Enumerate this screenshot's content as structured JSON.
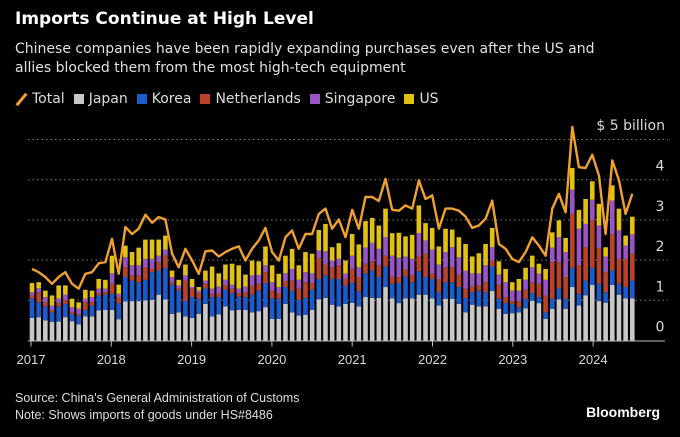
{
  "title": "Imports Continue at High Level",
  "subtitle_lines": [
    "Chinese companies have been rapidly expanding purchases even after the US and",
    "allies blocked them from the most high-tech equipment"
  ],
  "footer": {
    "source": "Source: China's General Administration of Customs",
    "note": "Note: Shows imports of goods under HS#8486",
    "brand": "Bloomberg"
  },
  "chart_data": {
    "type": "bar",
    "stacked": true,
    "title": "Imports Continue at High Level",
    "ylabel": "",
    "y_unit_label": "$ 5 billion",
    "ylim": [
      0,
      5.4
    ],
    "yticks": [
      "0",
      "1",
      "2",
      "3",
      "4"
    ],
    "xticks": [
      "2017",
      "2018",
      "2019",
      "2020",
      "2021",
      "2022",
      "2023",
      "2024"
    ],
    "grid": true,
    "legend": "top-left",
    "categories": [
      "2017-01",
      "2017-02",
      "2017-03",
      "2017-04",
      "2017-05",
      "2017-06",
      "2017-07",
      "2017-08",
      "2017-09",
      "2017-10",
      "2017-11",
      "2017-12",
      "2018-01",
      "2018-02",
      "2018-03",
      "2018-04",
      "2018-05",
      "2018-06",
      "2018-07",
      "2018-08",
      "2018-09",
      "2018-10",
      "2018-11",
      "2018-12",
      "2019-01",
      "2019-02",
      "2019-03",
      "2019-04",
      "2019-05",
      "2019-06",
      "2019-07",
      "2019-08",
      "2019-09",
      "2019-10",
      "2019-11",
      "2019-12",
      "2020-01",
      "2020-02",
      "2020-03",
      "2020-04",
      "2020-05",
      "2020-06",
      "2020-07",
      "2020-08",
      "2020-09",
      "2020-10",
      "2020-11",
      "2020-12",
      "2021-01",
      "2021-02",
      "2021-03",
      "2021-04",
      "2021-05",
      "2021-06",
      "2021-07",
      "2021-08",
      "2021-09",
      "2021-10",
      "2021-11",
      "2021-12",
      "2022-01",
      "2022-02",
      "2022-03",
      "2022-04",
      "2022-05",
      "2022-06",
      "2022-07",
      "2022-08",
      "2022-09",
      "2022-10",
      "2022-11",
      "2022-12",
      "2023-01",
      "2023-02",
      "2023-03",
      "2023-04",
      "2023-05",
      "2023-06",
      "2023-07",
      "2023-08",
      "2023-09",
      "2023-10",
      "2023-11",
      "2023-12",
      "2024-01",
      "2024-02",
      "2024-03",
      "2024-04",
      "2024-05",
      "2024-06",
      "2024-07"
    ],
    "series": [
      {
        "name": "Japan",
        "color": "#c8c8c8",
        "values": [
          0.56,
          0.58,
          0.5,
          0.46,
          0.47,
          0.58,
          0.48,
          0.4,
          0.6,
          0.6,
          0.75,
          0.76,
          0.76,
          0.53,
          0.97,
          0.98,
          0.98,
          1.0,
          1.01,
          1.14,
          1.02,
          0.66,
          0.7,
          0.6,
          0.56,
          0.66,
          0.91,
          0.6,
          0.65,
          0.85,
          0.75,
          0.76,
          0.76,
          0.7,
          0.73,
          0.83,
          0.54,
          0.54,
          0.91,
          0.7,
          0.62,
          0.64,
          0.76,
          1.02,
          1.06,
          0.89,
          0.85,
          0.91,
          0.94,
          0.85,
          1.08,
          1.06,
          1.06,
          1.33,
          1.05,
          0.93,
          1.05,
          1.05,
          1.14,
          1.14,
          1.05,
          0.87,
          1.04,
          1.04,
          0.91,
          0.7,
          0.89,
          0.85,
          0.85,
          1.23,
          0.79,
          0.66,
          0.68,
          0.7,
          0.8,
          0.99,
          0.93,
          0.54,
          0.79,
          1.02,
          0.79,
          1.33,
          0.87,
          1.12,
          1.38,
          0.98,
          0.94,
          1.38,
          1.14,
          1.05,
          1.05
        ]
      },
      {
        "name": "Korea",
        "color": "#1a5ccc",
        "values": [
          0.48,
          0.37,
          0.35,
          0.24,
          0.38,
          0.33,
          0.18,
          0.22,
          0.16,
          0.27,
          0.37,
          0.38,
          0.4,
          0.4,
          0.61,
          0.51,
          0.47,
          0.51,
          0.69,
          0.6,
          0.78,
          0.73,
          0.54,
          0.38,
          0.52,
          0.38,
          0.38,
          0.48,
          0.43,
          0.41,
          0.43,
          0.33,
          0.32,
          0.44,
          0.51,
          0.6,
          0.5,
          0.5,
          0.42,
          0.53,
          0.39,
          0.42,
          0.5,
          0.51,
          0.56,
          0.64,
          0.68,
          0.46,
          0.49,
          0.38,
          0.59,
          0.68,
          0.52,
          0.51,
          0.36,
          0.5,
          0.54,
          0.4,
          0.58,
          0.44,
          0.48,
          0.33,
          0.41,
          0.41,
          0.42,
          0.36,
          0.31,
          0.39,
          0.35,
          0.61,
          0.25,
          0.27,
          0.23,
          0.13,
          0.24,
          0.19,
          0.15,
          0.16,
          0.25,
          0.27,
          0.25,
          0.48,
          0.29,
          0.37,
          0.43,
          0.43,
          0.26,
          0.36,
          0.27,
          0.28,
          0.44
        ]
      },
      {
        "name": "Netherlands",
        "color": "#b8432a",
        "values": [
          0.08,
          0.25,
          0.1,
          0.05,
          0.08,
          0.09,
          0.04,
          0.04,
          0.19,
          0.08,
          0.06,
          0.06,
          0.25,
          0.15,
          0.24,
          0.13,
          0.17,
          0.31,
          0.08,
          0.21,
          0.31,
          0.06,
          0.05,
          0.51,
          0.21,
          0.14,
          0.12,
          0.08,
          0.08,
          0.11,
          0.11,
          0.09,
          0.12,
          0.23,
          0.17,
          0.27,
          0.2,
          0.14,
          0.15,
          0.26,
          0.28,
          0.39,
          0.17,
          0.52,
          0.27,
          0.29,
          0.34,
          0.16,
          0.35,
          0.35,
          0.24,
          0.23,
          0.29,
          0.27,
          0.18,
          0.15,
          0.17,
          0.17,
          0.37,
          0.58,
          0.13,
          0.33,
          0.37,
          0.37,
          0.31,
          0.23,
          0.14,
          0.13,
          0.25,
          0.15,
          0.35,
          0.15,
          0.07,
          0.15,
          0.22,
          0.27,
          0.33,
          0.42,
          0.91,
          0.66,
          0.54,
          1.34,
          0.71,
          0.83,
          1.18,
          0.89,
          0.5,
          0.9,
          0.62,
          0.7,
          0.67
        ]
      },
      {
        "name": "Singapore",
        "color": "#9a55c4",
        "values": [
          0.08,
          0.1,
          0.13,
          0.12,
          0.11,
          0.14,
          0.13,
          0.13,
          0.09,
          0.13,
          0.11,
          0.09,
          0.26,
          0.08,
          0.25,
          0.25,
          0.25,
          0.21,
          0.25,
          0.16,
          0.15,
          0.13,
          0.08,
          0.13,
          0.04,
          0.06,
          0.08,
          0.13,
          0.18,
          0.14,
          0.1,
          0.11,
          0.14,
          0.25,
          0.22,
          0.17,
          0.21,
          0.15,
          0.19,
          0.29,
          0.22,
          0.25,
          0.24,
          0.19,
          0.33,
          0.17,
          0.16,
          0.13,
          0.33,
          0.24,
          0.4,
          0.46,
          0.41,
          0.46,
          0.52,
          0.48,
          0.33,
          0.41,
          0.58,
          0.33,
          0.6,
          0.36,
          0.38,
          0.5,
          0.43,
          0.45,
          0.33,
          0.3,
          0.42,
          0.33,
          0.25,
          0.37,
          0.26,
          0.26,
          0.25,
          0.37,
          0.25,
          0.39,
          0.36,
          0.62,
          0.62,
          0.6,
          0.91,
          0.58,
          0.51,
          0.56,
          0.39,
          0.84,
          0.71,
          0.33,
          0.48
        ]
      },
      {
        "name": "US",
        "color": "#e3c014",
        "values": [
          0.23,
          0.15,
          0.16,
          0.25,
          0.33,
          0.23,
          0.21,
          0.16,
          0.22,
          0.16,
          0.24,
          0.22,
          0.44,
          0.23,
          0.29,
          0.33,
          0.44,
          0.48,
          0.48,
          0.4,
          0.35,
          0.16,
          0.14,
          0.27,
          0.2,
          0.09,
          0.25,
          0.55,
          0.33,
          0.38,
          0.52,
          0.58,
          0.3,
          0.37,
          0.34,
          0.47,
          0.42,
          0.33,
          0.44,
          0.5,
          0.36,
          0.5,
          0.49,
          0.51,
          0.68,
          0.33,
          0.39,
          0.33,
          0.54,
          0.57,
          0.66,
          0.62,
          0.58,
          0.71,
          0.56,
          0.62,
          0.5,
          0.6,
          0.69,
          0.43,
          0.54,
          0.45,
          0.58,
          0.44,
          0.5,
          0.66,
          0.42,
          0.5,
          0.53,
          0.48,
          0.33,
          0.33,
          0.21,
          0.29,
          0.3,
          0.29,
          0.25,
          0.27,
          0.38,
          0.42,
          0.35,
          0.54,
          0.47,
          0.62,
          0.46,
          0.54,
          0.23,
          0.38,
          0.54,
          0.25,
          0.44
        ]
      }
    ],
    "line_series": {
      "name": "Total",
      "color": "#f0a030",
      "values": [
        1.78,
        1.7,
        1.58,
        1.41,
        1.58,
        1.7,
        1.41,
        1.29,
        1.66,
        1.7,
        1.92,
        1.95,
        2.53,
        1.66,
        2.82,
        2.65,
        2.78,
        3.13,
        2.93,
        3.07,
        3.01,
        2.16,
        1.82,
        2.28,
        1.99,
        1.66,
        2.22,
        2.24,
        2.09,
        2.2,
        2.28,
        2.34,
        1.99,
        2.28,
        2.49,
        2.8,
        2.2,
        1.99,
        2.57,
        2.74,
        2.28,
        2.65,
        2.65,
        3.15,
        3.28,
        2.78,
        3.01,
        2.57,
        3.25,
        2.78,
        3.57,
        3.57,
        3.47,
        4.02,
        3.25,
        3.23,
        3.36,
        3.28,
        3.98,
        3.52,
        3.61,
        2.78,
        3.28,
        3.28,
        3.23,
        3.08,
        2.8,
        2.86,
        3.03,
        3.48,
        2.4,
        2.28,
        2.03,
        1.95,
        2.2,
        2.57,
        2.36,
        2.11,
        3.28,
        3.65,
        3.19,
        5.31,
        4.31,
        4.29,
        4.62,
        4.1,
        2.65,
        4.48,
        3.98,
        3.15,
        3.65
      ]
    }
  }
}
